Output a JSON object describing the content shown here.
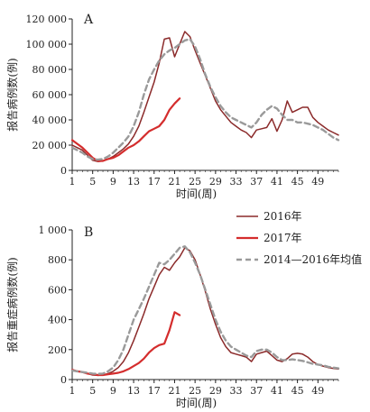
{
  "chart_data": [
    {
      "type": "line",
      "panel_label": "A",
      "xlabel": "时间(周)",
      "ylabel": "报告病例数(例)",
      "xlim": [
        1,
        53
      ],
      "ylim": [
        0,
        120000
      ],
      "x_ticks": [
        1,
        5,
        9,
        13,
        17,
        21,
        25,
        29,
        33,
        37,
        41,
        45,
        49
      ],
      "y_ticks": [
        0,
        20000,
        40000,
        60000,
        80000,
        100000,
        120000
      ],
      "y_tick_labels": [
        "0",
        "20 000",
        "40 000",
        "60 000",
        "80 000",
        "100 000",
        "120 000"
      ],
      "series": [
        {
          "name": "2016年",
          "color": "#8b2a2a",
          "style": "solid",
          "x": [
            1,
            2,
            3,
            4,
            5,
            6,
            7,
            8,
            9,
            10,
            11,
            12,
            13,
            14,
            15,
            16,
            17,
            18,
            19,
            20,
            21,
            22,
            23,
            24,
            25,
            26,
            27,
            28,
            29,
            30,
            31,
            32,
            33,
            34,
            35,
            36,
            37,
            38,
            39,
            40,
            41,
            42,
            43,
            44,
            45,
            46,
            47,
            48,
            49,
            50,
            51,
            52,
            53
          ],
          "y": [
            20000,
            18000,
            16000,
            12000,
            8000,
            7000,
            7500,
            9000,
            11000,
            14000,
            17000,
            21000,
            27000,
            35000,
            46000,
            58000,
            70000,
            85000,
            104000,
            105000,
            90000,
            100000,
            110000,
            106000,
            95000,
            85000,
            75000,
            65000,
            55000,
            48000,
            43000,
            38000,
            35000,
            32000,
            30000,
            26000,
            32000,
            33000,
            34000,
            41000,
            31000,
            40000,
            55000,
            46000,
            48000,
            50000,
            50000,
            42000,
            38000,
            35000,
            32000,
            30000,
            28000
          ]
        },
        {
          "name": "2017年",
          "color": "#d42d2d",
          "style": "solid",
          "x": [
            1,
            2,
            3,
            4,
            5,
            6,
            7,
            8,
            9,
            10,
            11,
            12,
            13,
            14,
            15,
            16,
            17,
            18,
            19,
            20,
            21,
            22
          ],
          "y": [
            24000,
            21000,
            18000,
            14000,
            10000,
            7500,
            7500,
            9000,
            10000,
            12000,
            15000,
            18000,
            20000,
            23000,
            27000,
            31000,
            33000,
            35000,
            40000,
            48000,
            53000,
            57000
          ]
        },
        {
          "name": "2014—2016年均值",
          "color": "#9a9a9a",
          "style": "dashed",
          "x": [
            1,
            2,
            3,
            4,
            5,
            6,
            7,
            8,
            9,
            10,
            11,
            12,
            13,
            14,
            15,
            16,
            17,
            18,
            19,
            20,
            21,
            22,
            23,
            24,
            25,
            26,
            27,
            28,
            29,
            30,
            31,
            32,
            33,
            34,
            35,
            36,
            37,
            38,
            39,
            40,
            41,
            42,
            43,
            44,
            45,
            46,
            47,
            48,
            49,
            50,
            51,
            52,
            53
          ],
          "y": [
            18000,
            16000,
            14000,
            11000,
            9000,
            8500,
            9000,
            11000,
            14000,
            18000,
            22000,
            27000,
            35000,
            46000,
            60000,
            72000,
            80000,
            87000,
            92000,
            95000,
            97000,
            100000,
            103000,
            104000,
            98000,
            88000,
            76000,
            66000,
            58000,
            51000,
            46000,
            42000,
            40000,
            38000,
            36000,
            34000,
            38000,
            44000,
            48000,
            51000,
            49000,
            44000,
            40000,
            40000,
            38000,
            38000,
            37000,
            36000,
            34000,
            32000,
            29000,
            26000,
            24000
          ]
        }
      ]
    },
    {
      "type": "line",
      "panel_label": "B",
      "xlabel": "时间(周)",
      "ylabel": "报告重症病例数(例)",
      "xlim": [
        1,
        53
      ],
      "ylim": [
        0,
        1000
      ],
      "x_ticks": [
        1,
        5,
        9,
        13,
        17,
        21,
        25,
        29,
        33,
        37,
        41,
        45,
        49
      ],
      "y_ticks": [
        0,
        200,
        400,
        600,
        800,
        1000
      ],
      "y_tick_labels": [
        "0",
        "200",
        "400",
        "600",
        "800",
        "1 000"
      ],
      "series": [
        {
          "name": "2016年",
          "color": "#8b2a2a",
          "style": "solid",
          "x": [
            1,
            2,
            3,
            4,
            5,
            6,
            7,
            8,
            9,
            10,
            11,
            12,
            13,
            14,
            15,
            16,
            17,
            18,
            19,
            20,
            21,
            22,
            23,
            24,
            25,
            26,
            27,
            28,
            29,
            30,
            31,
            32,
            33,
            34,
            35,
            36,
            37,
            38,
            39,
            40,
            41,
            42,
            43,
            44,
            45,
            46,
            47,
            48,
            49,
            50,
            51,
            52,
            53
          ],
          "y": [
            60,
            55,
            50,
            40,
            30,
            28,
            30,
            40,
            55,
            80,
            120,
            180,
            260,
            350,
            440,
            540,
            620,
            700,
            750,
            730,
            780,
            820,
            880,
            860,
            800,
            700,
            590,
            470,
            370,
            280,
            220,
            180,
            170,
            160,
            150,
            120,
            170,
            180,
            190,
            160,
            130,
            120,
            140,
            170,
            175,
            170,
            150,
            120,
            100,
            90,
            80,
            75,
            70
          ]
        },
        {
          "name": "2017年",
          "color": "#d42d2d",
          "style": "solid",
          "x": [
            1,
            2,
            3,
            4,
            5,
            6,
            7,
            8,
            9,
            10,
            11,
            12,
            13,
            14,
            15,
            16,
            17,
            18,
            19,
            20,
            21,
            22
          ],
          "y": [
            65,
            55,
            50,
            40,
            35,
            30,
            30,
            35,
            40,
            45,
            55,
            70,
            90,
            110,
            140,
            180,
            210,
            230,
            240,
            330,
            450,
            430
          ]
        },
        {
          "name": "2014—2016年均值",
          "color": "#9a9a9a",
          "style": "dashed",
          "x": [
            1,
            2,
            3,
            4,
            5,
            6,
            7,
            8,
            9,
            10,
            11,
            12,
            13,
            14,
            15,
            16,
            17,
            18,
            19,
            20,
            21,
            22,
            23,
            24,
            25,
            26,
            27,
            28,
            29,
            30,
            31,
            32,
            33,
            34,
            35,
            36,
            37,
            38,
            39,
            40,
            41,
            42,
            43,
            44,
            45,
            46,
            47,
            48,
            49,
            50,
            51,
            52,
            53
          ],
          "y": [
            60,
            55,
            50,
            45,
            40,
            38,
            40,
            55,
            80,
            130,
            200,
            300,
            400,
            470,
            540,
            620,
            700,
            780,
            770,
            800,
            840,
            880,
            890,
            850,
            780,
            700,
            600,
            500,
            400,
            320,
            260,
            220,
            200,
            180,
            160,
            150,
            190,
            200,
            200,
            180,
            150,
            130,
            130,
            135,
            130,
            125,
            115,
            105,
            100,
            95,
            85,
            80,
            75
          ]
        }
      ]
    }
  ],
  "legend": {
    "items": [
      {
        "label": "2016年",
        "color": "#8b2a2a",
        "style": "solid"
      },
      {
        "label": "2017年",
        "color": "#d42d2d",
        "style": "solid"
      },
      {
        "label": "2014—2016年均值",
        "color": "#9a9a9a",
        "style": "dashed"
      }
    ]
  }
}
